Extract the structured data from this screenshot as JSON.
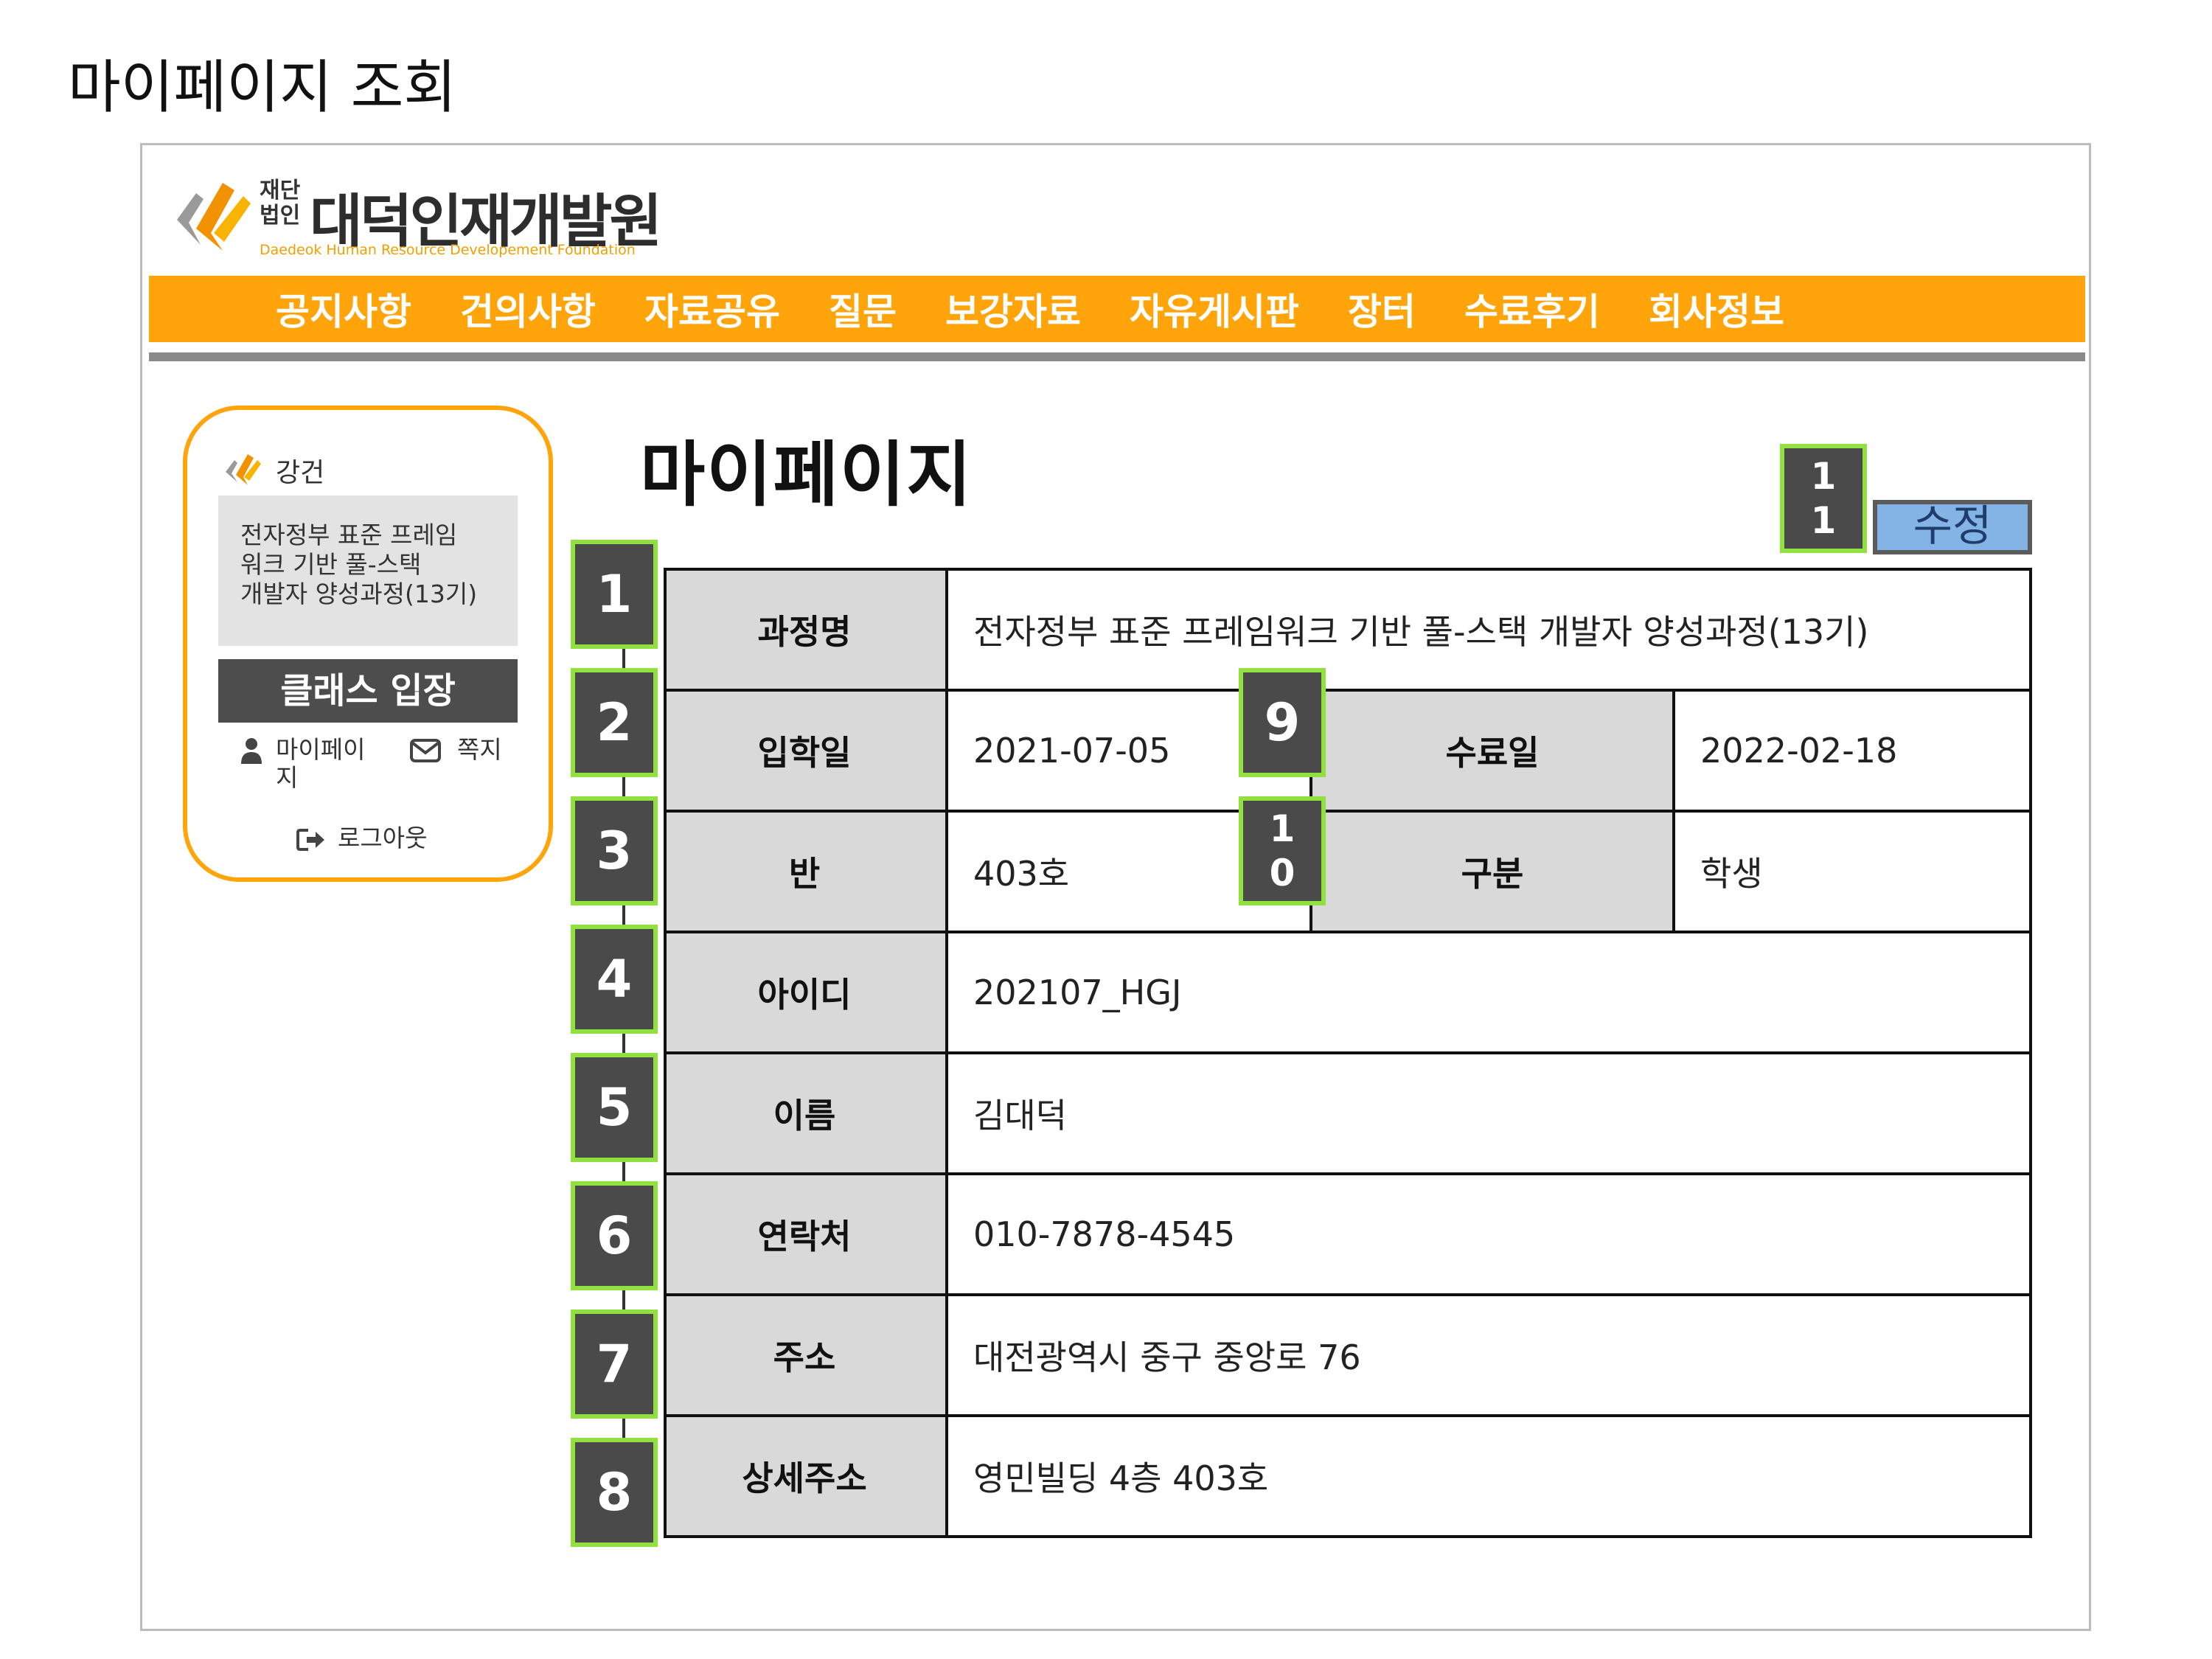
{
  "slide_title": "마이페이지 조회",
  "header": {
    "logo_small": "재단\n법인",
    "logo_main": "대덕인재개발원",
    "logo_en": "Daedeok Human Resource Developement Foundation",
    "nav": [
      "공지사항",
      "건의사항",
      "자료공유",
      "질문",
      "보강자료",
      "자유게시판",
      "장터",
      "수료후기",
      "회사정보"
    ]
  },
  "sidebar": {
    "role": "강건",
    "course": "전자정부 표준 프레임\n워크 기반 풀-스택\n개발자 양성과정(13기)",
    "class_button": "클래스 입장",
    "mypage_link": "마이페이\n지",
    "message_link": "쪽지",
    "logout_link": "로그아웃"
  },
  "main": {
    "heading": "마이페이지",
    "edit_button": "수정",
    "fields": {
      "course_label": "과정명",
      "course_value": "전자정부 표준 프레임워크 기반 풀-스택 개발자 양성과정(13기)",
      "entry_label": "입학일",
      "entry_value": "2021-07-05",
      "completion_label": "수료일",
      "completion_value": "2022-02-18",
      "class_label": "반",
      "class_value": "403호",
      "type_label": "구분",
      "type_value": "학생",
      "id_label": "아이디",
      "id_value": "202107_HGJ",
      "name_label": "이름",
      "name_value": "김대덕",
      "phone_label": "연락처",
      "phone_value": "010-7878-4545",
      "address_label": "주소",
      "address_value": "대전광역시 중구 중앙로 76",
      "address_detail_label": "상세주소",
      "address_detail_value": "영민빌딩 4층 403호"
    }
  },
  "markers": [
    "1",
    "2",
    "3",
    "4",
    "5",
    "6",
    "7",
    "8",
    "9",
    "1\n0",
    "1\n1"
  ],
  "colors": {
    "nav_orange": "#ffa40a",
    "marker_green": "#92e040",
    "marker_fill": "#4a4a4a",
    "edit_blue": "#84b3e6",
    "label_gray": "#d9d9d9"
  }
}
